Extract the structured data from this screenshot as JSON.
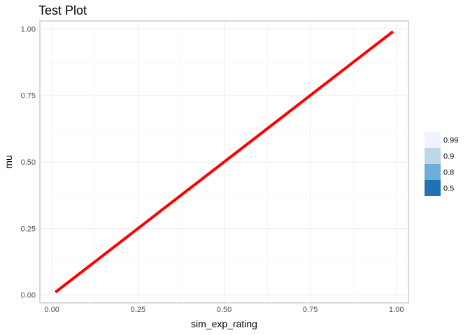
{
  "chart_data": {
    "type": "line",
    "title": "Test Plot",
    "xlabel": "sim_exp_rating",
    "ylabel": "mu",
    "xlim": [
      -0.035,
      1.035
    ],
    "ylim": [
      -0.03,
      1.03
    ],
    "x_ticks": [
      "0.00",
      "0.25",
      "0.50",
      "0.75",
      "1.00"
    ],
    "y_ticks": [
      "0.00",
      "0.25",
      "0.50",
      "0.75",
      "1.00"
    ],
    "grid": true,
    "series": [
      {
        "x": [
          0.01,
          0.99
        ],
        "y": [
          0.01,
          0.99
        ],
        "color": "#ff0000"
      }
    ],
    "legend": {
      "placement": "right",
      "items": [
        {
          "label": "0.99",
          "color": "#eff3ff"
        },
        {
          "label": "0.9",
          "color": "#bdd7e7"
        },
        {
          "label": "0.8",
          "color": "#6baed6"
        },
        {
          "label": "0.5",
          "color": "#2171b5"
        }
      ]
    }
  }
}
